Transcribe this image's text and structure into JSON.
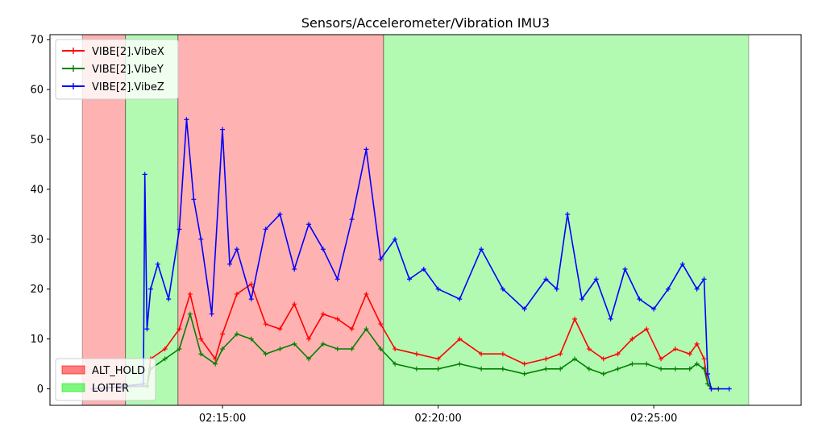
{
  "chart_data": {
    "type": "line",
    "title": "Sensors/Accelerometer/Vibration IMU3",
    "xlabel": "",
    "ylabel": "",
    "x_axis": {
      "kind": "time",
      "range": [
        "02:11:00",
        "02:28:25"
      ],
      "ticks": [
        "02:15:00",
        "02:20:00",
        "02:25:00"
      ]
    },
    "y_axis": {
      "range": [
        -3.3,
        71
      ],
      "ticks": [
        0,
        10,
        20,
        30,
        40,
        50,
        60,
        70
      ],
      "tick_labels": [
        "0",
        "10",
        "20",
        "30",
        "40",
        "50",
        "60",
        "70"
      ]
    },
    "grid": false,
    "legends": {
      "series_placement": "top-left",
      "modes_placement": "bottom-left"
    },
    "mode_bands": [
      {
        "mode": "ALT_HOLD",
        "start": "02:11:45",
        "end": "02:12:45"
      },
      {
        "mode": "LOITER",
        "start": "02:12:45",
        "end": "02:13:58"
      },
      {
        "mode": "ALT_HOLD",
        "start": "02:13:58",
        "end": "02:18:44"
      },
      {
        "mode": "LOITER",
        "start": "02:18:44",
        "end": "02:27:12"
      }
    ],
    "modes": [
      {
        "name": "ALT_HOLD",
        "color": "#ff0000"
      },
      {
        "name": "LOITER",
        "color": "#00ee00"
      }
    ],
    "series": [
      {
        "name": "VIBE[2].VibeX",
        "color": "#ff0000",
        "x": [
          "02:12:00",
          "02:12:40",
          "02:13:15",
          "02:13:20",
          "02:13:40",
          "02:14:00",
          "02:14:15",
          "02:14:30",
          "02:14:50",
          "02:15:00",
          "02:15:20",
          "02:15:40",
          "02:16:00",
          "02:16:20",
          "02:16:40",
          "02:17:00",
          "02:17:20",
          "02:17:40",
          "02:18:00",
          "02:18:20",
          "02:18:40",
          "02:19:00",
          "02:19:30",
          "02:20:00",
          "02:20:30",
          "02:21:00",
          "02:21:30",
          "02:22:00",
          "02:22:30",
          "02:22:50",
          "02:23:10",
          "02:23:30",
          "02:23:50",
          "02:24:10",
          "02:24:30",
          "02:24:50",
          "02:25:10",
          "02:25:30",
          "02:25:50",
          "02:26:00",
          "02:26:10",
          "02:26:15",
          "02:26:20",
          "02:26:30"
        ],
        "y": [
          0,
          0.5,
          0.6,
          6,
          8,
          12,
          19,
          10,
          6,
          11,
          19,
          21,
          13,
          12,
          17,
          10,
          15,
          14,
          12,
          19,
          13,
          8,
          7,
          6,
          10,
          7,
          7,
          5,
          6,
          7,
          14,
          8,
          6,
          7,
          10,
          12,
          6,
          8,
          7,
          9,
          6,
          1,
          0,
          0
        ]
      },
      {
        "name": "VIBE[2].VibeY",
        "color": "#008000",
        "x": [
          "02:12:00",
          "02:12:40",
          "02:13:15",
          "02:13:20",
          "02:13:40",
          "02:14:00",
          "02:14:15",
          "02:14:30",
          "02:14:50",
          "02:15:00",
          "02:15:20",
          "02:15:40",
          "02:16:00",
          "02:16:20",
          "02:16:40",
          "02:17:00",
          "02:17:20",
          "02:17:40",
          "02:18:00",
          "02:18:20",
          "02:18:40",
          "02:19:00",
          "02:19:30",
          "02:20:00",
          "02:20:30",
          "02:21:00",
          "02:21:30",
          "02:22:00",
          "02:22:30",
          "02:22:50",
          "02:23:10",
          "02:23:30",
          "02:23:50",
          "02:24:10",
          "02:24:30",
          "02:24:50",
          "02:25:10",
          "02:25:30",
          "02:25:50",
          "02:26:00",
          "02:26:10",
          "02:26:15",
          "02:26:20",
          "02:26:30"
        ],
        "y": [
          0,
          0.4,
          0.5,
          4,
          6,
          8,
          15,
          7,
          5,
          8,
          11,
          10,
          7,
          8,
          9,
          6,
          9,
          8,
          8,
          12,
          8,
          5,
          4,
          4,
          5,
          4,
          4,
          3,
          4,
          4,
          6,
          4,
          3,
          4,
          5,
          5,
          4,
          4,
          4,
          5,
          4,
          1,
          0,
          0
        ]
      },
      {
        "name": "VIBE[2].VibeZ",
        "color": "#0000ff",
        "x": [
          "02:12:00",
          "02:12:40",
          "02:13:10",
          "02:13:12",
          "02:13:15",
          "02:13:20",
          "02:13:30",
          "02:13:45",
          "02:14:00",
          "02:14:10",
          "02:14:20",
          "02:14:30",
          "02:14:45",
          "02:15:00",
          "02:15:10",
          "02:15:20",
          "02:15:40",
          "02:16:00",
          "02:16:20",
          "02:16:40",
          "02:17:00",
          "02:17:20",
          "02:17:40",
          "02:18:00",
          "02:18:20",
          "02:18:40",
          "02:19:00",
          "02:19:20",
          "02:19:40",
          "02:20:00",
          "02:20:30",
          "02:21:00",
          "02:21:30",
          "02:22:00",
          "02:22:30",
          "02:22:45",
          "02:23:00",
          "02:23:20",
          "02:23:40",
          "02:24:00",
          "02:24:20",
          "02:24:40",
          "02:25:00",
          "02:25:20",
          "02:25:40",
          "02:26:00",
          "02:26:10",
          "02:26:15",
          "02:26:20",
          "02:26:45"
        ],
        "y": [
          0,
          0.5,
          1,
          43,
          12,
          20,
          25,
          18,
          32,
          54,
          38,
          30,
          15,
          52,
          25,
          28,
          18,
          32,
          35,
          24,
          33,
          28,
          22,
          34,
          48,
          26,
          30,
          22,
          24,
          20,
          18,
          28,
          20,
          16,
          22,
          20,
          35,
          18,
          22,
          14,
          24,
          18,
          16,
          20,
          25,
          20,
          22,
          3,
          0,
          0
        ]
      }
    ]
  }
}
